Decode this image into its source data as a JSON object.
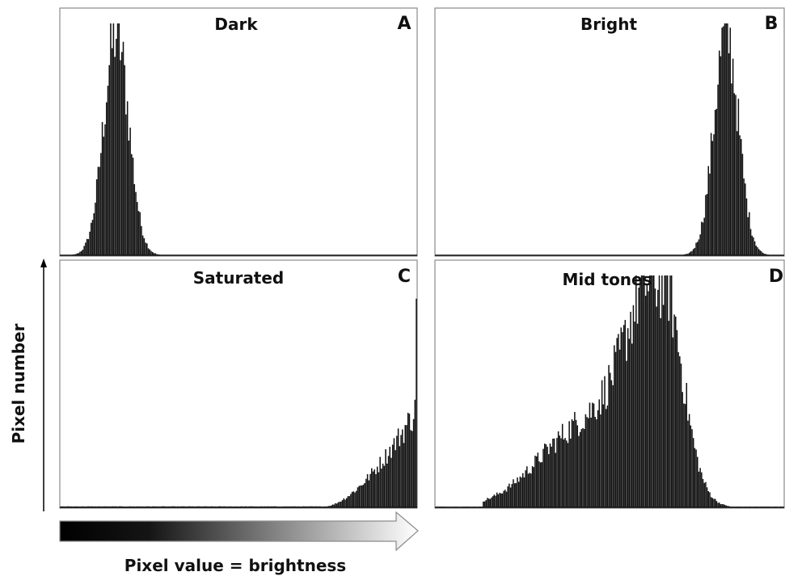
{
  "figure": {
    "ylabel": "Pixel number",
    "xlabel": "Pixel value = brightness"
  },
  "chart_data": [
    {
      "panel": "A",
      "title": "Dark",
      "type": "bar",
      "histogram": "brightness",
      "x_range": [
        0,
        255
      ],
      "distribution": {
        "shape": "narrow peak",
        "peak_x": 40,
        "spread": 9,
        "peak_height": 0.98
      }
    },
    {
      "panel": "B",
      "title": "Bright",
      "type": "bar",
      "histogram": "brightness",
      "x_range": [
        0,
        255
      ],
      "distribution": {
        "shape": "narrow peak",
        "peak_x": 213,
        "spread": 9,
        "peak_height": 0.98
      }
    },
    {
      "panel": "C",
      "title": "Saturated",
      "type": "bar",
      "histogram": "brightness",
      "x_range": [
        0,
        255
      ],
      "distribution": {
        "shape": "rising toward maximum with spike at 255",
        "rise_start_x": 190,
        "level_at_max": 0.42,
        "spike_x": 255,
        "spike_height": 0.9
      }
    },
    {
      "panel": "D",
      "title": "Mid tones",
      "type": "bar",
      "histogram": "brightness",
      "x_range": [
        0,
        255
      ],
      "distribution": {
        "shape": "broad with shoulder",
        "main_peak_x": 165,
        "main_peak_height": 0.98,
        "shoulder_x": 120,
        "shoulder_height": 0.3,
        "support": [
          35,
          215
        ]
      }
    }
  ],
  "colors": {
    "bars": "#111111",
    "frame": "#8a8a8a",
    "background": "#ffffff"
  }
}
